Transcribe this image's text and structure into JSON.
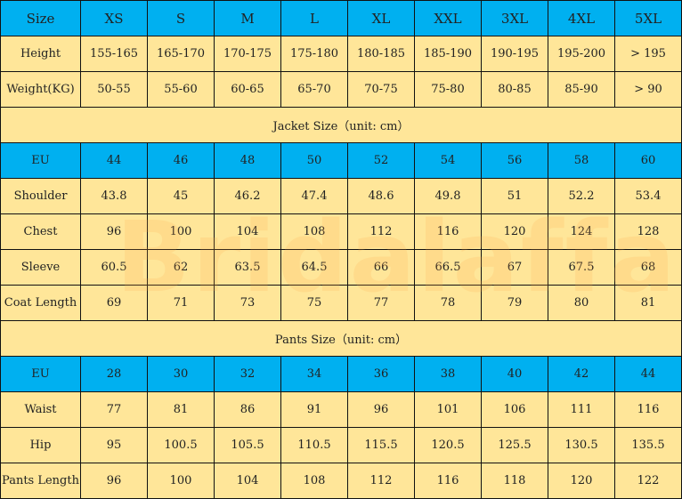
{
  "header": {
    "label": "Size",
    "sizes": [
      "XS",
      "S",
      "M",
      "L",
      "XL",
      "XXL",
      "3XL",
      "4XL",
      "5XL"
    ]
  },
  "general_rows": [
    {
      "label": "Height",
      "values": [
        "155-165",
        "165-170",
        "170-175",
        "175-180",
        "180-185",
        "185-190",
        "190-195",
        "195-200",
        "> 195"
      ]
    },
    {
      "label": "Weight(KG)",
      "values": [
        "50-55",
        "55-60",
        "60-65",
        "65-70",
        "70-75",
        "75-80",
        "80-85",
        "85-90",
        "> 90"
      ]
    }
  ],
  "jacket": {
    "title": "Jacket Size（unit: cm）",
    "eu": {
      "label": "EU",
      "values": [
        "44",
        "46",
        "48",
        "50",
        "52",
        "54",
        "56",
        "58",
        "60"
      ]
    },
    "rows": [
      {
        "label": "Shoulder",
        "values": [
          "43.8",
          "45",
          "46.2",
          "47.4",
          "48.6",
          "49.8",
          "51",
          "52.2",
          "53.4"
        ]
      },
      {
        "label": "Chest",
        "values": [
          "96",
          "100",
          "104",
          "108",
          "112",
          "116",
          "120",
          "124",
          "128"
        ]
      },
      {
        "label": "Sleeve",
        "values": [
          "60.5",
          "62",
          "63.5",
          "64.5",
          "66",
          "66.5",
          "67",
          "67.5",
          "68"
        ]
      },
      {
        "label": "Coat Length",
        "values": [
          "69",
          "71",
          "73",
          "75",
          "77",
          "78",
          "79",
          "80",
          "81"
        ]
      }
    ]
  },
  "pants": {
    "title": "Pants Size（unit: cm）",
    "eu": {
      "label": "EU",
      "values": [
        "28",
        "30",
        "32",
        "34",
        "36",
        "38",
        "40",
        "42",
        "44"
      ]
    },
    "rows": [
      {
        "label": "Waist",
        "values": [
          "77",
          "81",
          "86",
          "91",
          "96",
          "101",
          "106",
          "111",
          "116"
        ]
      },
      {
        "label": "Hip",
        "values": [
          "95",
          "100.5",
          "105.5",
          "110.5",
          "115.5",
          "120.5",
          "125.5",
          "130.5",
          "135.5"
        ]
      },
      {
        "label": "Pants Length",
        "values": [
          "96",
          "100",
          "104",
          "108",
          "112",
          "116",
          "118",
          "120",
          "122"
        ]
      }
    ]
  },
  "watermark": "Bridalaffair",
  "colors": {
    "header_blue": "#00B0F0",
    "cell_yellow": "#FFE699"
  }
}
